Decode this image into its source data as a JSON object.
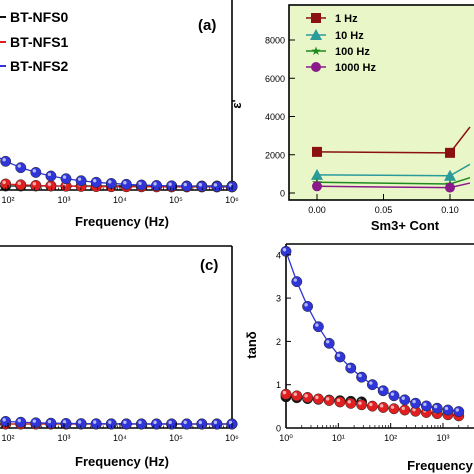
{
  "colors": {
    "black": "#111111",
    "red": "#e02020",
    "blue": "#2f35d8",
    "dark_red": "#8b1010",
    "teal": "#2a9a9a",
    "green": "#1e8a1e",
    "purple": "#8a1a8a",
    "panel_b_bg": "#e9f7c8"
  },
  "chart_data": [
    {
      "type": "line",
      "panel_label": "(a)",
      "xlabel": "Frequency (Hz)",
      "x_scale": "log",
      "x_tick_labels": [
        "10²",
        "10³",
        "10⁴",
        "10⁵",
        "10⁶"
      ],
      "legend_position": "top-left",
      "series": [
        {
          "name": "BT-NFS0",
          "color": "black",
          "x": [
            10,
            1000000
          ],
          "y": [
            0,
            0
          ]
        },
        {
          "name": "BT-NFS1",
          "color": "red",
          "x": [
            10,
            1000000
          ],
          "y": [
            0,
            0
          ]
        },
        {
          "name": "BT-NFS2",
          "color": "blue",
          "x": [
            10,
            1000000
          ],
          "y": [
            0,
            0
          ]
        }
      ]
    },
    {
      "type": "line",
      "ylabel": "ε'",
      "xlabel": "Sm3+ Cont",
      "x_tick_labels": [
        "0.00",
        "0.05",
        "0.10"
      ],
      "y_tick_labels": [
        "0",
        "2000",
        "4000",
        "6000",
        "8000"
      ],
      "ylim": [
        -250,
        9200
      ],
      "legend_position": "top-left",
      "series": [
        {
          "name": "1 Hz",
          "color": "dark_red",
          "marker": "square",
          "x": [
            0.0,
            0.1,
            0.115
          ],
          "y": [
            2150,
            2100,
            3450
          ]
        },
        {
          "name": "10 Hz",
          "color": "teal",
          "marker": "triangle",
          "x": [
            0.0,
            0.1,
            0.115
          ],
          "y": [
            950,
            900,
            1500
          ]
        },
        {
          "name": "100 Hz",
          "color": "green",
          "marker": "star",
          "x": [
            0.0,
            0.1,
            0.115
          ],
          "y": [
            560,
            470,
            800
          ]
        },
        {
          "name": "1000 Hz",
          "color": "purple",
          "marker": "circle",
          "x": [
            0.0,
            0.1,
            0.115
          ],
          "y": [
            350,
            280,
            520
          ]
        }
      ]
    },
    {
      "type": "line",
      "panel_label": "(c)",
      "xlabel": "Frequency (Hz)",
      "x_scale": "log",
      "x_tick_labels": [
        "10²",
        "10³",
        "10⁴",
        "10⁵",
        "10⁶"
      ],
      "series": [
        {
          "color": "black",
          "x": [
            10,
            1000000
          ],
          "y": [
            0,
            0
          ]
        },
        {
          "color": "red",
          "x": [
            10,
            1000000
          ],
          "y": [
            0,
            0
          ]
        },
        {
          "color": "blue",
          "x": [
            10,
            1000000
          ],
          "y": [
            0,
            0
          ]
        }
      ]
    },
    {
      "type": "line",
      "ylabel": "tanδ",
      "xlabel": "Frequency",
      "x_scale": "log",
      "x_tick_labels": [
        "10⁰",
        "10¹",
        "10²",
        "10³"
      ],
      "y_tick_labels": [
        "0",
        "1",
        "2",
        "3",
        "4"
      ],
      "ylim": [
        0,
        4.25
      ],
      "series": [
        {
          "color": "black",
          "x": [
            1,
            2000
          ],
          "y": [
            0.72,
            0.52
          ]
        },
        {
          "color": "red",
          "x": [
            1,
            2000
          ],
          "y": [
            0.78,
            0.28
          ]
        },
        {
          "color": "blue",
          "x": [
            1,
            2000
          ],
          "y": [
            4.08,
            0.38
          ]
        }
      ]
    }
  ]
}
